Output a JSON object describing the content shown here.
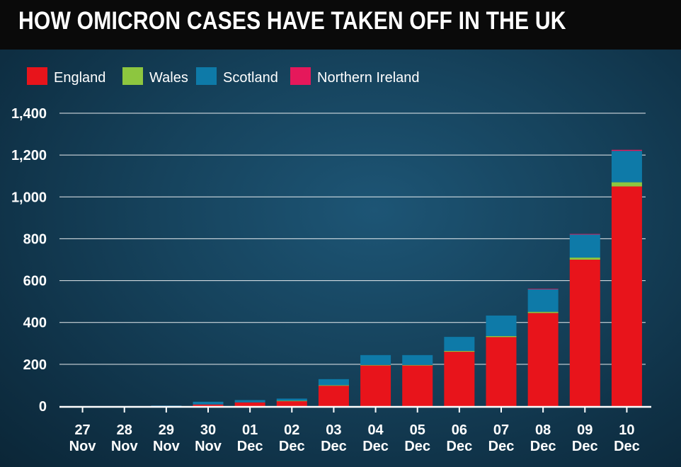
{
  "colors": {
    "england": "#e8141b",
    "wales": "#8dc63f",
    "scotland": "#0e7aa8",
    "northern_ireland": "#e5185b"
  },
  "chart_data": {
    "type": "bar",
    "stacked": true,
    "title": "HOW OMICRON CASES HAVE TAKEN OFF IN THE UK",
    "xlabel": "",
    "ylabel": "",
    "ylim": [
      0,
      1400
    ],
    "yticks": [
      0,
      200,
      400,
      600,
      800,
      1000,
      1200,
      1400
    ],
    "ytick_labels": [
      "0",
      "200",
      "400",
      "600",
      "800",
      "1,000",
      "1,200",
      "1,400"
    ],
    "grid": true,
    "legend_position": "top-left",
    "categories": [
      [
        "27",
        "Nov"
      ],
      [
        "28",
        "Nov"
      ],
      [
        "29",
        "Nov"
      ],
      [
        "30",
        "Nov"
      ],
      [
        "01",
        "Dec"
      ],
      [
        "02",
        "Dec"
      ],
      [
        "03",
        "Dec"
      ],
      [
        "04",
        "Dec"
      ],
      [
        "05",
        "Dec"
      ],
      [
        "06",
        "Dec"
      ],
      [
        "07",
        "Dec"
      ],
      [
        "08",
        "Dec"
      ],
      [
        "09",
        "Dec"
      ],
      [
        "10",
        "Dec"
      ]
    ],
    "series": [
      {
        "name": "England",
        "color_key": "england",
        "values": [
          0,
          0,
          2,
          8,
          18,
          25,
          99,
          196,
          196,
          260,
          330,
          445,
          700,
          1050
        ]
      },
      {
        "name": "Wales",
        "color_key": "wales",
        "values": [
          0,
          0,
          0,
          0,
          0,
          1,
          1,
          1,
          1,
          4,
          5,
          6,
          10,
          20
        ]
      },
      {
        "name": "Scotland",
        "color_key": "scotland",
        "values": [
          0,
          0,
          1,
          13,
          11,
          10,
          29,
          47,
          47,
          67,
          98,
          108,
          110,
          150
        ]
      },
      {
        "name": "Northern Ireland",
        "color_key": "northern_ireland",
        "values": [
          0,
          0,
          0,
          0,
          0,
          0,
          0,
          0,
          0,
          0,
          0,
          2,
          3,
          5
        ]
      }
    ]
  }
}
